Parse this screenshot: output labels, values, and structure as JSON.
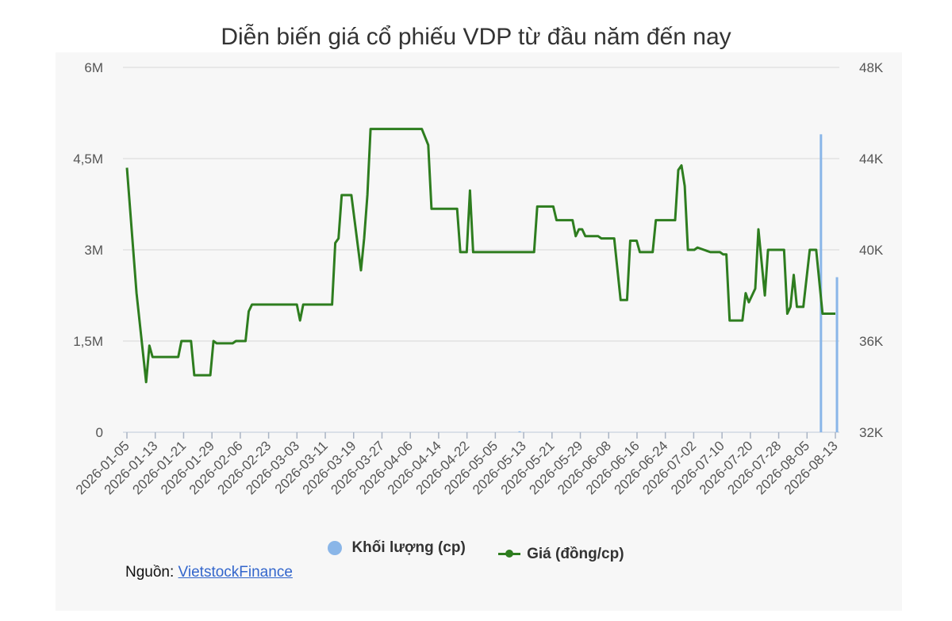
{
  "chart_data": {
    "type": "bar+line",
    "title": "Diễn biến giá cổ phiếu VDP từ đầu năm đến nay",
    "x_tick_labels": [
      "2026-01-05",
      "2026-01-13",
      "2026-01-21",
      "2026-01-29",
      "2026-02-06",
      "2026-02-23",
      "2026-03-03",
      "2026-03-11",
      "2026-03-19",
      "2026-03-27",
      "2026-04-06",
      "2026-04-14",
      "2026-04-22",
      "2026-05-05",
      "2026-05-13",
      "2026-05-21",
      "2026-05-29",
      "2026-06-08",
      "2026-06-16",
      "2026-06-24",
      "2026-07-02",
      "2026-07-10",
      "2026-07-20",
      "2026-07-28",
      "2026-08-05",
      "2026-08-13"
    ],
    "y_left": {
      "ticks": [
        "0",
        "1,5M",
        "3M",
        "4,5M",
        "6M"
      ],
      "min": 0,
      "max": 6000000
    },
    "y_right": {
      "ticks": [
        "32K",
        "36K",
        "40K",
        "44K",
        "48K"
      ],
      "min": 32000,
      "max": 48000
    },
    "grid": true,
    "legend_position": "bottom",
    "series": [
      {
        "name": "Khối lượng (cp)",
        "type": "bar",
        "axis": "left",
        "color": "#8ab6e8",
        "points": [
          {
            "x": 122.5,
            "y": 15000
          },
          {
            "x": 216.5,
            "y": 4900000
          },
          {
            "x": 221.5,
            "y": 2550000
          }
        ]
      },
      {
        "name": "Giá (đồng/cp)",
        "type": "line",
        "axis": "right",
        "color": "#2e7d1f",
        "points": [
          {
            "x": 0,
            "y": 43600
          },
          {
            "x": 3,
            "y": 38100
          },
          {
            "x": 6,
            "y": 34200
          },
          {
            "x": 7,
            "y": 35800
          },
          {
            "x": 8,
            "y": 35300
          },
          {
            "x": 16,
            "y": 35300
          },
          {
            "x": 17,
            "y": 36000
          },
          {
            "x": 20,
            "y": 36000
          },
          {
            "x": 21,
            "y": 34500
          },
          {
            "x": 26,
            "y": 34500
          },
          {
            "x": 27,
            "y": 36000
          },
          {
            "x": 28,
            "y": 35900
          },
          {
            "x": 33,
            "y": 35900
          },
          {
            "x": 34,
            "y": 36000
          },
          {
            "x": 37,
            "y": 36000
          },
          {
            "x": 38,
            "y": 37300
          },
          {
            "x": 39,
            "y": 37600
          },
          {
            "x": 53,
            "y": 37600
          },
          {
            "x": 54,
            "y": 36900
          },
          {
            "x": 55,
            "y": 37600
          },
          {
            "x": 64,
            "y": 37600
          },
          {
            "x": 65,
            "y": 40300
          },
          {
            "x": 66,
            "y": 40500
          },
          {
            "x": 67,
            "y": 42400
          },
          {
            "x": 70,
            "y": 42400
          },
          {
            "x": 73,
            "y": 39100
          },
          {
            "x": 74,
            "y": 40500
          },
          {
            "x": 75,
            "y": 42400
          },
          {
            "x": 76,
            "y": 45300
          },
          {
            "x": 92,
            "y": 45300
          },
          {
            "x": 94,
            "y": 44600
          },
          {
            "x": 95,
            "y": 41800
          },
          {
            "x": 103,
            "y": 41800
          },
          {
            "x": 104,
            "y": 39900
          },
          {
            "x": 106,
            "y": 39900
          },
          {
            "x": 107,
            "y": 42600
          },
          {
            "x": 108,
            "y": 39900
          },
          {
            "x": 127,
            "y": 39900
          },
          {
            "x": 128,
            "y": 41900
          },
          {
            "x": 133,
            "y": 41900
          },
          {
            "x": 134,
            "y": 41300
          },
          {
            "x": 139,
            "y": 41300
          },
          {
            "x": 140,
            "y": 40600
          },
          {
            "x": 141,
            "y": 40900
          },
          {
            "x": 142,
            "y": 40900
          },
          {
            "x": 143,
            "y": 40600
          },
          {
            "x": 147,
            "y": 40600
          },
          {
            "x": 148,
            "y": 40500
          },
          {
            "x": 152,
            "y": 40500
          },
          {
            "x": 154,
            "y": 37800
          },
          {
            "x": 156,
            "y": 37800
          },
          {
            "x": 157,
            "y": 40400
          },
          {
            "x": 159,
            "y": 40400
          },
          {
            "x": 160,
            "y": 39900
          },
          {
            "x": 164,
            "y": 39900
          },
          {
            "x": 165,
            "y": 41300
          },
          {
            "x": 171,
            "y": 41300
          },
          {
            "x": 172,
            "y": 43500
          },
          {
            "x": 173,
            "y": 43700
          },
          {
            "x": 174,
            "y": 42800
          },
          {
            "x": 175,
            "y": 40000
          },
          {
            "x": 177,
            "y": 40000
          },
          {
            "x": 178,
            "y": 40100
          },
          {
            "x": 180,
            "y": 40000
          },
          {
            "x": 182,
            "y": 39900
          },
          {
            "x": 185,
            "y": 39900
          },
          {
            "x": 186,
            "y": 39800
          },
          {
            "x": 187,
            "y": 39800
          },
          {
            "x": 188,
            "y": 36900
          },
          {
            "x": 192,
            "y": 36900
          },
          {
            "x": 193,
            "y": 38100
          },
          {
            "x": 194,
            "y": 37700
          },
          {
            "x": 196,
            "y": 38300
          },
          {
            "x": 197,
            "y": 40900
          },
          {
            "x": 199,
            "y": 38000
          },
          {
            "x": 200,
            "y": 40000
          },
          {
            "x": 205,
            "y": 40000
          },
          {
            "x": 206,
            "y": 37200
          },
          {
            "x": 207,
            "y": 37500
          },
          {
            "x": 208,
            "y": 38900
          },
          {
            "x": 209,
            "y": 37500
          },
          {
            "x": 211,
            "y": 37500
          },
          {
            "x": 213,
            "y": 40000
          },
          {
            "x": 215,
            "y": 40000
          },
          {
            "x": 217,
            "y": 37200
          },
          {
            "x": 221,
            "y": 37200
          }
        ]
      }
    ]
  },
  "legend": {
    "volume_label": "Khối lượng (cp)",
    "price_label": "Giá (đồng/cp)"
  },
  "source": {
    "prefix": "Nguồn: ",
    "link_text": "VietstockFinance"
  }
}
